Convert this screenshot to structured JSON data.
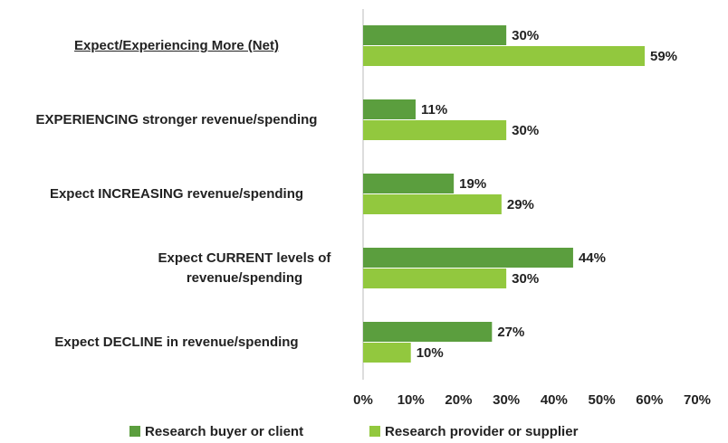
{
  "chart_data": {
    "type": "hbar",
    "categories": [
      "Expect/Experiencing More (Net)",
      "EXPERIENCING stronger revenue/spending",
      "Expect INCREASING revenue/spending",
      "Expect CURRENT levels of revenue/spending",
      "Expect DECLINE in revenue/spending"
    ],
    "series": [
      {
        "name": "Research buyer or client",
        "color": "#5b9e3e",
        "values": [
          30,
          11,
          19,
          44,
          27
        ],
        "value_labels": [
          "30%",
          "11%",
          "19%",
          "44%",
          "27%"
        ]
      },
      {
        "name": "Research provider or supplier",
        "color": "#92c83e",
        "values": [
          59,
          30,
          29,
          30,
          10
        ],
        "value_labels": [
          "59%",
          "30%",
          "29%",
          "30%",
          "10%"
        ]
      }
    ],
    "xlim": [
      0,
      70
    ],
    "xticks": [
      {
        "value": 0,
        "label": "0%"
      },
      {
        "value": 10,
        "label": "10%"
      },
      {
        "value": 20,
        "label": "20%"
      },
      {
        "value": 30,
        "label": "30%"
      },
      {
        "value": 40,
        "label": "40%"
      },
      {
        "value": 50,
        "label": "50%"
      },
      {
        "value": 60,
        "label": "60%"
      },
      {
        "value": 70,
        "label": "70%"
      }
    ],
    "grid": false,
    "legend": "bottom"
  }
}
